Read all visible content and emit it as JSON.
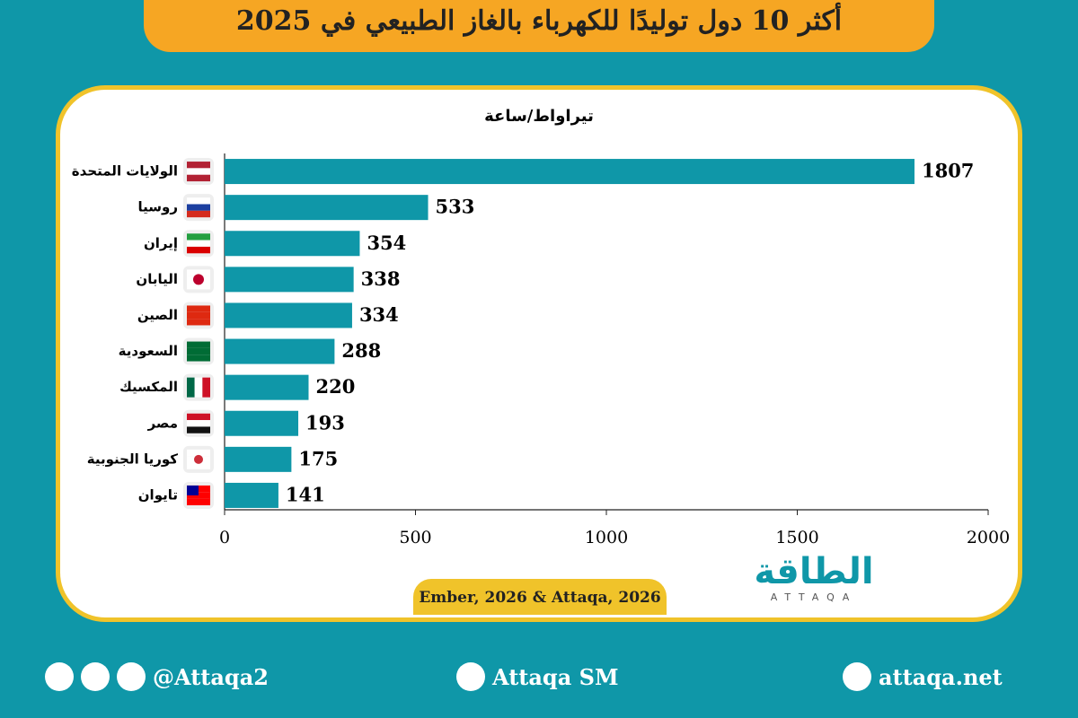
{
  "chart_data": {
    "type": "bar",
    "orientation": "horizontal",
    "title": "أكثر 10 دول توليدًا للكهرباء بالغاز الطبيعي في 2025",
    "unit": "تيراواط/ساعة",
    "categories": [
      "الولايات المتحدة",
      "روسيا",
      "إيران",
      "اليابان",
      "الصين",
      "السعودية",
      "المكسيك",
      "مصر",
      "كوريا الجنوبية",
      "تايوان"
    ],
    "values": [
      1807,
      533,
      354,
      338,
      334,
      288,
      220,
      193,
      175,
      141
    ],
    "color": "#0f97a8",
    "xlim": [
      0,
      2000
    ],
    "xticks": [
      0,
      500,
      1000,
      1500,
      2000
    ],
    "source": "Ember, 2026 & Attaqa, 2026"
  },
  "logo": {
    "name": "الطاقة",
    "latin": "ATTAQA"
  },
  "footer": {
    "handle": "@Attaqa2",
    "youtube": "Attaqa SM",
    "website": "attaqa.net"
  }
}
